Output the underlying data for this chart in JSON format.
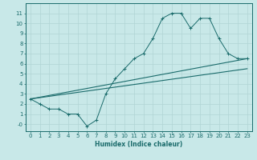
{
  "title": "",
  "xlabel": "Humidex (Indice chaleur)",
  "bg_color": "#c8e8e8",
  "line_color": "#1a6b6b",
  "grid_color": "#b0d4d4",
  "xlim": [
    -0.5,
    23.5
  ],
  "ylim": [
    -0.7,
    12.0
  ],
  "xticks": [
    0,
    1,
    2,
    3,
    4,
    5,
    6,
    7,
    8,
    9,
    10,
    11,
    12,
    13,
    14,
    15,
    16,
    17,
    18,
    19,
    20,
    21,
    22,
    23
  ],
  "yticks": [
    0,
    1,
    2,
    3,
    4,
    5,
    6,
    7,
    8,
    9,
    10,
    11
  ],
  "ytick_labels": [
    "-0",
    "1",
    "2",
    "3",
    "4",
    "5",
    "6",
    "7",
    "8",
    "9",
    "10",
    "11"
  ],
  "line1_x": [
    0,
    1,
    2,
    3,
    4,
    5,
    6,
    7,
    8,
    9,
    10,
    11,
    12,
    13,
    14,
    15,
    16,
    17,
    18,
    19,
    20,
    21,
    22,
    23
  ],
  "line1_y": [
    2.5,
    2.0,
    1.5,
    1.5,
    1.0,
    1.0,
    -0.2,
    0.4,
    3.0,
    4.5,
    5.5,
    6.5,
    7.0,
    8.5,
    10.5,
    11.0,
    11.0,
    9.5,
    10.5,
    10.5,
    8.5,
    7.0,
    6.5,
    6.5
  ],
  "line2_x": [
    0,
    23
  ],
  "line2_y": [
    2.5,
    6.5
  ],
  "line3_x": [
    0,
    23
  ],
  "line3_y": [
    2.5,
    5.5
  ]
}
